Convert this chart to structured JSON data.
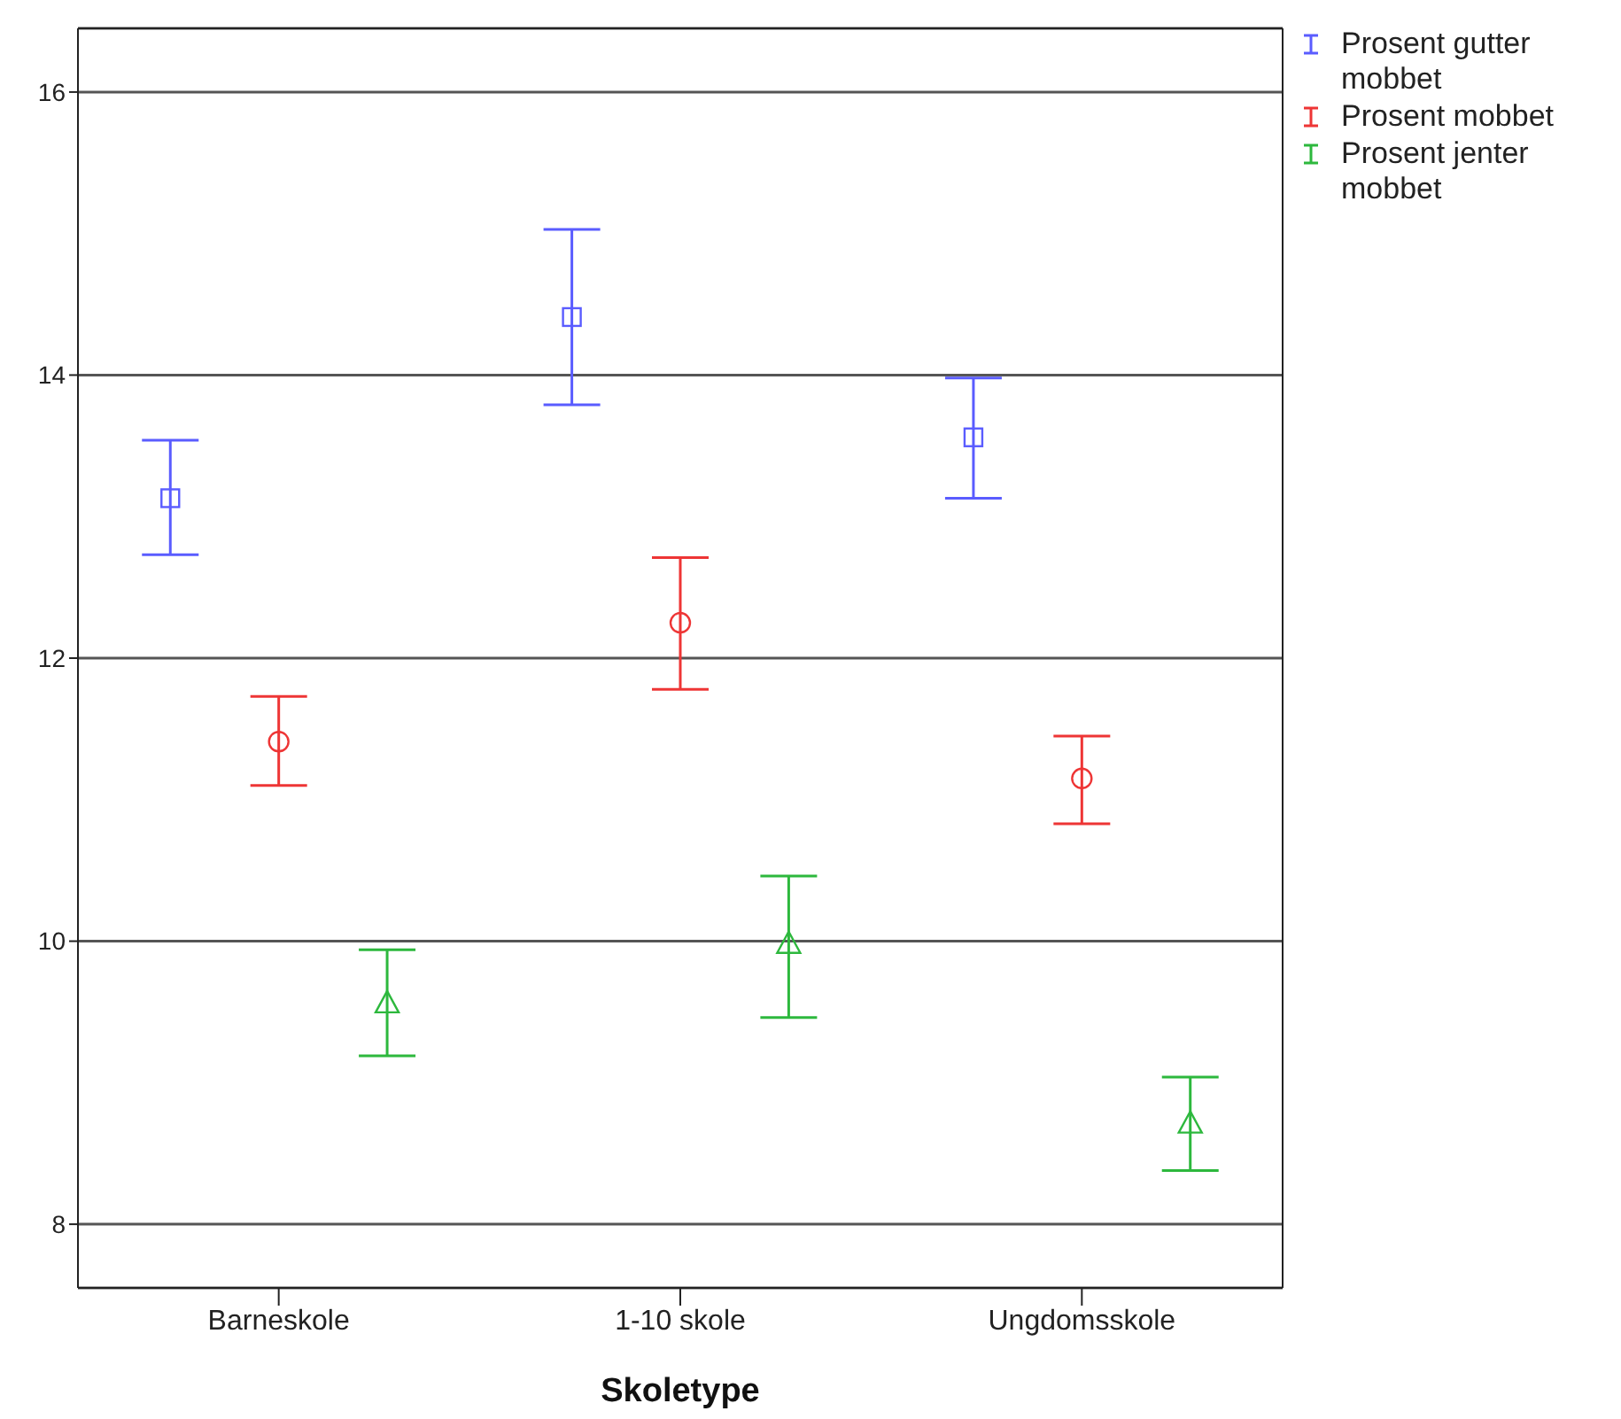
{
  "chart_data": {
    "type": "scatter",
    "xlabel": "Skoletype",
    "categories": [
      "Barneskole",
      "1-10 skole",
      "Ungdomsskole"
    ],
    "series": [
      {
        "name": "Prosent gutter mobbet",
        "color": "#5a5cff",
        "marker": "square",
        "values": [
          13.13,
          14.41,
          13.56
        ],
        "errors": [
          [
            12.73,
            13.54
          ],
          [
            13.79,
            15.03
          ],
          [
            13.13,
            13.98
          ]
        ]
      },
      {
        "name": "Prosent mobbet",
        "color": "#ee3535",
        "marker": "circle",
        "values": [
          11.41,
          12.25,
          11.15
        ],
        "errors": [
          [
            11.1,
            11.73
          ],
          [
            11.78,
            12.71
          ],
          [
            10.83,
            11.45
          ]
        ]
      },
      {
        "name": "Prosent jenter mobbet",
        "color": "#2db83d",
        "marker": "triangle",
        "values": [
          9.56,
          9.98,
          8.71
        ],
        "errors": [
          [
            9.19,
            9.94
          ],
          [
            9.46,
            10.46
          ],
          [
            8.38,
            9.04
          ]
        ]
      }
    ],
    "ylim": [
      7.55,
      16.45
    ],
    "yticks": [
      8,
      10,
      12,
      14,
      16
    ],
    "grid": "y",
    "legend": "top right"
  }
}
